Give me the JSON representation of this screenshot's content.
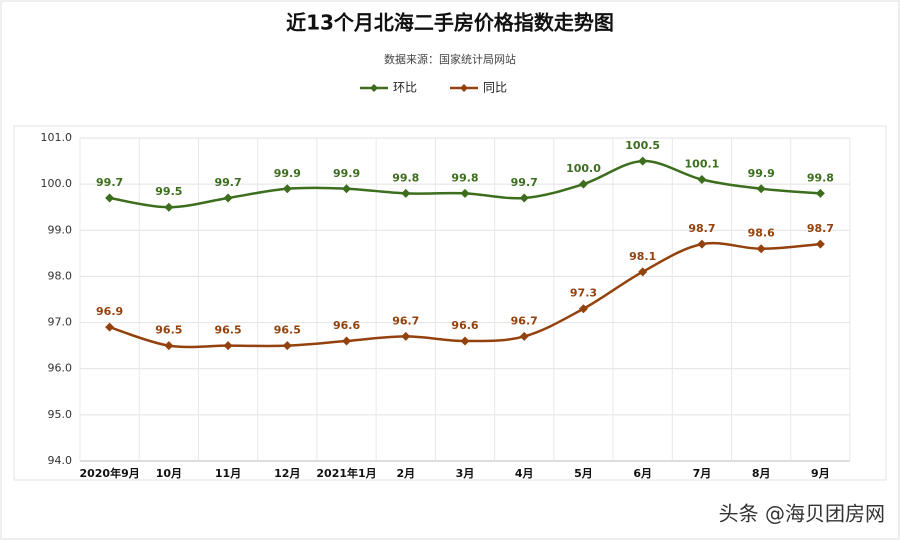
{
  "chart_data": {
    "type": "line",
    "title": "近13个月北海二手房价格指数走势图",
    "subtitle": "数据来源：国家统计局网站",
    "watermark": "头条 @海贝团房网",
    "categories": [
      "2020年9月",
      "10月",
      "11月",
      "12月",
      "2021年1月",
      "2月",
      "3月",
      "4月",
      "5月",
      "6月",
      "7月",
      "8月",
      "9月"
    ],
    "series": [
      {
        "name": "环比",
        "color": "#3c6e1e",
        "values": [
          99.7,
          99.5,
          99.7,
          99.9,
          99.9,
          99.8,
          99.8,
          99.7,
          100,
          100.5,
          100.1,
          99.9,
          99.8
        ],
        "value_labels": [
          "99.7",
          "99.5",
          "99.7",
          "99.9",
          "99.9",
          "99.8",
          "99.8",
          "99.7",
          "100.0",
          "100.5",
          "100.1",
          "99.9",
          "99.8"
        ]
      },
      {
        "name": "同比",
        "color": "#94420d",
        "values": [
          96.9,
          96.5,
          96.5,
          96.5,
          96.6,
          96.7,
          96.6,
          96.7,
          97.3,
          98.1,
          98.7,
          98.6,
          98.7
        ],
        "value_labels": [
          "96.9",
          "96.5",
          "96.5",
          "96.5",
          "96.6",
          "96.7",
          "96.6",
          "96.7",
          "97.3",
          "98.1",
          "98.7",
          "98.6",
          "98.7"
        ]
      }
    ],
    "ylim": [
      94,
      101
    ],
    "yticks": [
      {
        "value": 94,
        "label": "94.0"
      },
      {
        "value": 95,
        "label": "95.0"
      },
      {
        "value": 96,
        "label": "96.0"
      },
      {
        "value": 97,
        "label": "97.0"
      },
      {
        "value": 98,
        "label": "98.0"
      },
      {
        "value": 99,
        "label": "99.0"
      },
      {
        "value": 100,
        "label": "100.0"
      },
      {
        "value": 101,
        "label": "101.0"
      }
    ],
    "grid": true,
    "legend": "top"
  }
}
